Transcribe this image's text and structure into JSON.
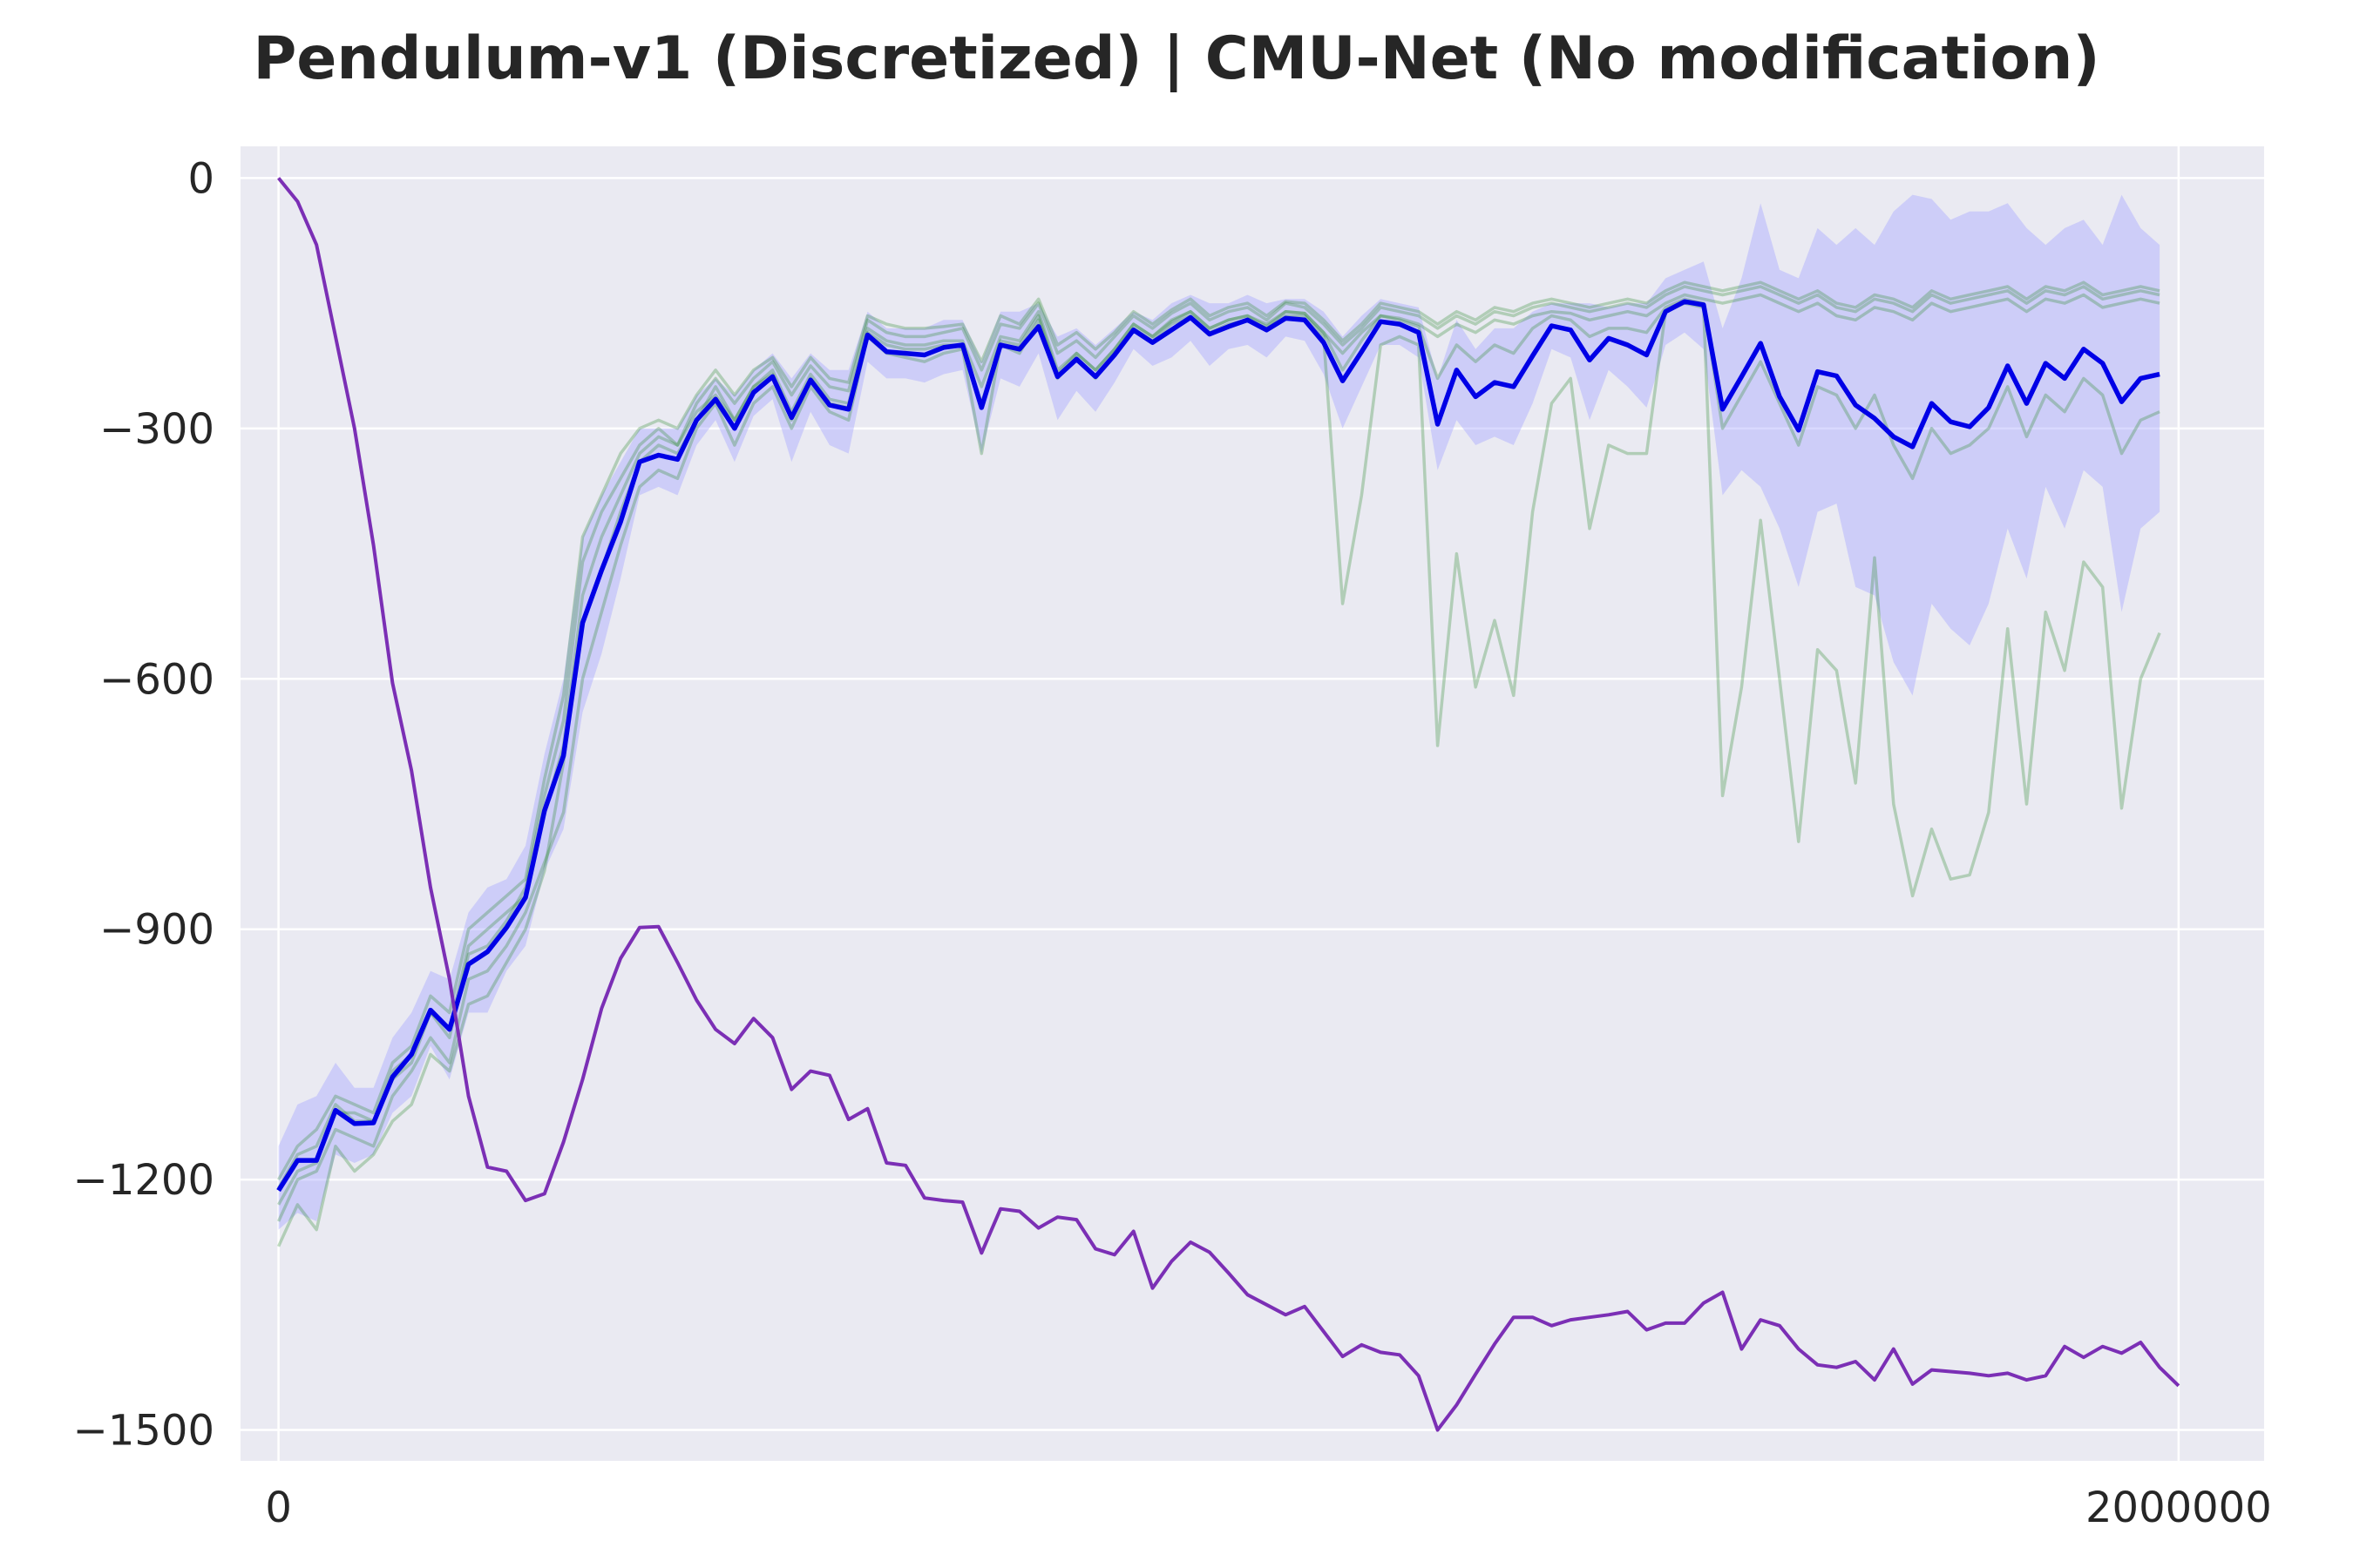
{
  "chart_data": {
    "type": "line",
    "title": "Pendulum-v1 (Discretized) | CMU-Net (No modification)",
    "xlabel": "",
    "ylabel": "",
    "xlim": [
      -40000,
      2090000
    ],
    "ylim": [
      -1537,
      38
    ],
    "x_ticks": [
      0,
      2000000
    ],
    "x_tick_labels": [
      "0",
      "2000000"
    ],
    "y_ticks": [
      0,
      -300,
      -600,
      -900,
      -1200,
      -1500
    ],
    "y_tick_labels": [
      "0",
      "−300",
      "−600",
      "−900",
      "−1200",
      "−1500"
    ],
    "grid": true,
    "legend": "none",
    "colors": {
      "background": "#eaeaf2",
      "grid": "#ffffff",
      "mean": "#0000e6",
      "band": "#aaaaff",
      "individual": "#2e8b2e",
      "purple": "#7b2fb5"
    },
    "mean": {
      "x_start": 0,
      "x_step": 20000,
      "values": [
        -1213,
        -1177,
        -1177,
        -1117,
        -1133,
        -1132,
        -1077,
        -1050,
        -997,
        -1020,
        -942,
        -927,
        -898,
        -862,
        -758,
        -692,
        -533,
        -470,
        -412,
        -340,
        -332,
        -337,
        -290,
        -265,
        -300,
        -257,
        -238,
        -287,
        -242,
        -272,
        -277,
        -188,
        -208,
        -210,
        -212,
        -203,
        -200,
        -275,
        -200,
        -205,
        -178,
        -238,
        -217,
        -238,
        -212,
        -182,
        -197,
        -182,
        -167,
        -187,
        -178,
        -170,
        -182,
        -168,
        -170,
        -197,
        -243,
        -208,
        -172,
        -175,
        -185,
        -295,
        -230,
        -262,
        -245,
        -250,
        -213,
        -177,
        -182,
        -218,
        -192,
        -200,
        -212,
        -160,
        -148,
        -152,
        -277,
        -238,
        -198,
        -262,
        -302,
        -232,
        -237,
        -272,
        -288,
        -310,
        -322,
        -270,
        -292,
        -298,
        -275,
        -225,
        -270,
        -222,
        -240,
        -205,
        -222,
        -268,
        -240,
        -235
      ]
    },
    "band": {
      "upper": [
        -1160,
        -1110,
        -1100,
        -1060,
        -1090,
        -1090,
        -1030,
        -1000,
        -950,
        -960,
        -880,
        -850,
        -840,
        -800,
        -690,
        -600,
        -430,
        -380,
        -340,
        -300,
        -300,
        -300,
        -260,
        -240,
        -260,
        -230,
        -210,
        -240,
        -210,
        -230,
        -230,
        -160,
        -180,
        -180,
        -180,
        -170,
        -170,
        -220,
        -160,
        -160,
        -150,
        -190,
        -180,
        -200,
        -180,
        -160,
        -170,
        -150,
        -140,
        -150,
        -150,
        -140,
        -150,
        -145,
        -145,
        -160,
        -190,
        -165,
        -145,
        -150,
        -155,
        -240,
        -170,
        -205,
        -180,
        -180,
        -160,
        -150,
        -150,
        -150,
        -155,
        -150,
        -150,
        -120,
        -110,
        -100,
        -180,
        -120,
        -30,
        -110,
        -120,
        -60,
        -80,
        -60,
        -80,
        -40,
        -20,
        -25,
        -50,
        -40,
        -40,
        -30,
        -60,
        -80,
        -60,
        -50,
        -80,
        -20,
        -60,
        -80
      ],
      "lower": [
        -1260,
        -1240,
        -1250,
        -1170,
        -1180,
        -1170,
        -1120,
        -1100,
        -1040,
        -1080,
        -1000,
        -1000,
        -950,
        -920,
        -830,
        -780,
        -640,
        -570,
        -480,
        -380,
        -370,
        -380,
        -320,
        -290,
        -340,
        -285,
        -265,
        -340,
        -280,
        -320,
        -330,
        -220,
        -240,
        -240,
        -245,
        -235,
        -230,
        -330,
        -240,
        -250,
        -210,
        -290,
        -255,
        -280,
        -245,
        -205,
        -225,
        -215,
        -195,
        -225,
        -205,
        -200,
        -215,
        -190,
        -195,
        -235,
        -300,
        -250,
        -200,
        -200,
        -215,
        -350,
        -290,
        -320,
        -310,
        -320,
        -270,
        -205,
        -215,
        -290,
        -230,
        -250,
        -275,
        -200,
        -185,
        -205,
        -380,
        -350,
        -370,
        -420,
        -490,
        -400,
        -390,
        -490,
        -500,
        -580,
        -620,
        -510,
        -540,
        -560,
        -510,
        -420,
        -480,
        -370,
        -420,
        -350,
        -370,
        -520,
        -420,
        -400
      ]
    },
    "series": [
      {
        "values": [
          -1250,
          -1200,
          -1190,
          -1140,
          -1150,
          -1160,
          -1100,
          -1070,
          -1030,
          -1060,
          -960,
          -950,
          -920,
          -880,
          -820,
          -760,
          -600,
          -520,
          -440,
          -370,
          -350,
          -360,
          -300,
          -270,
          -320,
          -270,
          -250,
          -300,
          -250,
          -280,
          -290,
          -190,
          -210,
          -215,
          -220,
          -210,
          -205,
          -330,
          -200,
          -210,
          -170,
          -240,
          -215,
          -240,
          -210,
          -180,
          -195,
          -175,
          -165,
          -185,
          -175,
          -170,
          -180,
          -165,
          -165,
          -190,
          -510,
          -380,
          -200,
          -190,
          -200,
          -680,
          -450,
          -610,
          -530,
          -620,
          -400,
          -270,
          -240,
          -420,
          -320,
          -330,
          -330,
          -160,
          -150,
          -155,
          -740,
          -610,
          -410,
          -600,
          -795,
          -565,
          -590,
          -725,
          -455,
          -750,
          -860,
          -780,
          -840,
          -835,
          -760,
          -540,
          -750,
          -520,
          -590,
          -460,
          -490,
          -755,
          -600,
          -545
        ]
      },
      {
        "values": [
          -1280,
          -1230,
          -1260,
          -1160,
          -1190,
          -1170,
          -1130,
          -1110,
          -1050,
          -1070,
          -990,
          -980,
          -940,
          -900,
          -830,
          -700,
          -530,
          -470,
          -400,
          -340,
          -320,
          -330,
          -290,
          -250,
          -290,
          -250,
          -230,
          -280,
          -235,
          -265,
          -270,
          -180,
          -195,
          -200,
          -200,
          -195,
          -195,
          -250,
          -190,
          -195,
          -160,
          -230,
          -210,
          -230,
          -205,
          -175,
          -190,
          -172,
          -160,
          -180,
          -170,
          -165,
          -178,
          -160,
          -162,
          -185,
          -210,
          -185,
          -165,
          -168,
          -175,
          -190,
          -175,
          -185,
          -170,
          -175,
          -165,
          -160,
          -162,
          -170,
          -165,
          -160,
          -165,
          -150,
          -140,
          -145,
          -150,
          -145,
          -140,
          -150,
          -160,
          -150,
          -165,
          -170,
          -155,
          -160,
          -170,
          -150,
          -160,
          -155,
          -150,
          -145,
          -160,
          -145,
          -150,
          -140,
          -155,
          -150,
          -145,
          -150
        ]
      },
      {
        "values": [
          -1230,
          -1190,
          -1180,
          -1120,
          -1120,
          -1130,
          -1080,
          -1060,
          -1000,
          -1030,
          -930,
          -920,
          -890,
          -850,
          -740,
          -650,
          -460,
          -400,
          -360,
          -320,
          -300,
          -320,
          -270,
          -240,
          -270,
          -240,
          -220,
          -260,
          -225,
          -250,
          -255,
          -170,
          -185,
          -190,
          -190,
          -185,
          -180,
          -230,
          -175,
          -180,
          -150,
          -210,
          -195,
          -215,
          -190,
          -165,
          -180,
          -162,
          -150,
          -170,
          -160,
          -155,
          -170,
          -150,
          -155,
          -175,
          -200,
          -180,
          -155,
          -160,
          -165,
          -180,
          -165,
          -175,
          -160,
          -165,
          -155,
          -150,
          -155,
          -160,
          -155,
          -150,
          -155,
          -140,
          -130,
          -135,
          -140,
          -135,
          -130,
          -140,
          -150,
          -140,
          -155,
          -160,
          -145,
          -150,
          -160,
          -140,
          -150,
          -145,
          -140,
          -135,
          -150,
          -135,
          -140,
          -130,
          -145,
          -140,
          -135,
          -140
        ]
      },
      {
        "values": [
          -1200,
          -1160,
          -1140,
          -1100,
          -1110,
          -1120,
          -1060,
          -1040,
          -980,
          -1000,
          -900,
          -880,
          -860,
          -840,
          -720,
          -620,
          -430,
          -380,
          -330,
          -300,
          -290,
          -300,
          -260,
          -230,
          -260,
          -230,
          -215,
          -250,
          -215,
          -240,
          -245,
          -165,
          -175,
          -180,
          -180,
          -178,
          -175,
          -220,
          -165,
          -175,
          -145,
          -200,
          -185,
          -205,
          -185,
          -160,
          -175,
          -158,
          -145,
          -165,
          -155,
          -150,
          -165,
          -148,
          -150,
          -170,
          -195,
          -175,
          -150,
          -155,
          -160,
          -175,
          -160,
          -170,
          -155,
          -160,
          -150,
          -145,
          -150,
          -155,
          -150,
          -145,
          -150,
          -135,
          -125,
          -130,
          -135,
          -130,
          -125,
          -135,
          -145,
          -135,
          -150,
          -155,
          -140,
          -145,
          -155,
          -135,
          -145,
          -140,
          -135,
          -130,
          -145,
          -130,
          -135,
          -125,
          -140,
          -135,
          -130,
          -135
        ]
      },
      {
        "values": [
          -1210,
          -1170,
          -1160,
          -1110,
          -1130,
          -1130,
          -1070,
          -1050,
          -1000,
          -1020,
          -920,
          -900,
          -880,
          -860,
          -760,
          -680,
          -500,
          -430,
          -380,
          -330,
          -310,
          -320,
          -280,
          -260,
          -290,
          -250,
          -235,
          -290,
          -240,
          -270,
          -275,
          -185,
          -200,
          -205,
          -205,
          -200,
          -200,
          -270,
          -195,
          -200,
          -165,
          -235,
          -210,
          -230,
          -205,
          -175,
          -190,
          -170,
          -160,
          -180,
          -170,
          -165,
          -175,
          -160,
          -162,
          -185,
          -230,
          -195,
          -165,
          -170,
          -178,
          -240,
          -200,
          -220,
          -200,
          -210,
          -180,
          -165,
          -170,
          -190,
          -180,
          -180,
          -185,
          -155,
          -145,
          -150,
          -300,
          -260,
          -220,
          -270,
          -320,
          -250,
          -260,
          -300,
          -260,
          -320,
          -360,
          -300,
          -330,
          -320,
          -300,
          -250,
          -310,
          -260,
          -280,
          -240,
          -260,
          -330,
          -290,
          -280
        ]
      }
    ],
    "purple": {
      "x_start": 0,
      "x_step": 20000,
      "values": [
        0,
        -28,
        -80,
        -190,
        -300,
        -440,
        -605,
        -710,
        -850,
        -960,
        -1100,
        -1185,
        -1190,
        -1225,
        -1217,
        -1155,
        -1080,
        -995,
        -935,
        -898,
        -897,
        -940,
        -985,
        -1020,
        -1037,
        -1007,
        -1030,
        -1092,
        -1070,
        -1075,
        -1128,
        -1115,
        -1180,
        -1183,
        -1222,
        -1225,
        -1227,
        -1288,
        -1235,
        -1238,
        -1258,
        -1245,
        -1248,
        -1283,
        -1290,
        -1262,
        -1330,
        -1298,
        -1275,
        -1287,
        -1312,
        -1338,
        -1350,
        -1362,
        -1352,
        -1382,
        -1412,
        -1398,
        -1407,
        -1410,
        -1435,
        -1500,
        -1470,
        -1433,
        -1397,
        -1365,
        -1365,
        -1375,
        -1368,
        -1365,
        -1362,
        -1358,
        -1380,
        -1372,
        -1372,
        -1348,
        -1335,
        -1403,
        -1368,
        -1375,
        -1403,
        -1422,
        -1425,
        -1418,
        -1440,
        -1403,
        -1445,
        -1428,
        -1430,
        -1432,
        -1435,
        -1432,
        -1440,
        -1435,
        -1400,
        -1413,
        -1400,
        -1408,
        -1395,
        -1425,
        -1447
      ]
    }
  }
}
